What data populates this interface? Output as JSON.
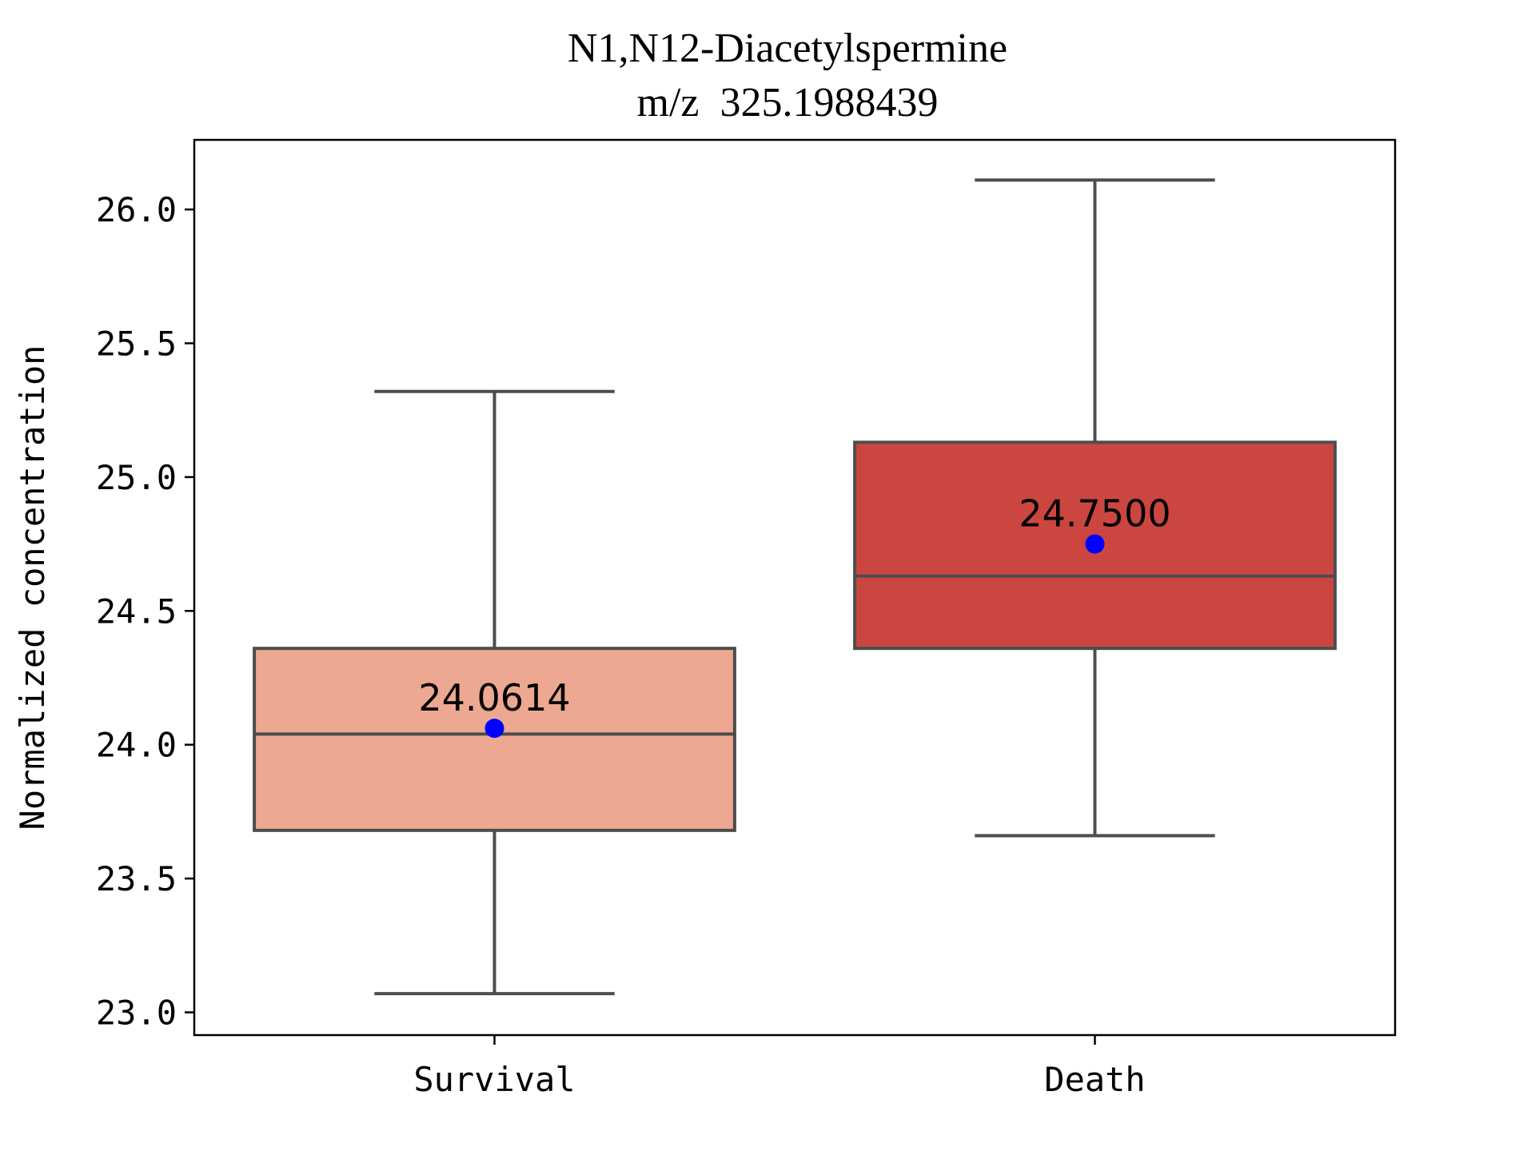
{
  "chart_data": {
    "type": "box",
    "title": "N1,N12-Diacetylspermine",
    "subtitle": "m/z  325.1988439",
    "xlabel": "",
    "ylabel": "Normalized concentration",
    "ylim": [
      22.915,
      26.26
    ],
    "yticks": [
      "23.0",
      "23.5",
      "24.0",
      "24.5",
      "25.0",
      "25.5",
      "26.0"
    ],
    "yticks_values": [
      23.0,
      23.5,
      24.0,
      24.5,
      25.0,
      25.5,
      26.0
    ],
    "grid": false,
    "legend": "none",
    "categories": [
      "Survival",
      "Death"
    ],
    "boxes": [
      {
        "category": "Survival",
        "whisker_low": 23.07,
        "q1": 23.68,
        "median": 24.04,
        "q3": 24.36,
        "whisker_high": 25.32,
        "mean": 24.0614,
        "mean_label": "24.0614",
        "color": "#eda891"
      },
      {
        "category": "Death",
        "whisker_low": 23.66,
        "q1": 24.36,
        "median": 24.63,
        "q3": 25.13,
        "whisker_high": 26.11,
        "mean": 24.75,
        "mean_label": "24.7500",
        "color": "#cb4640"
      }
    ],
    "colors": {
      "line": "#4d4d4d",
      "mean_marker": "#0000ff",
      "axes": "#000000"
    }
  }
}
